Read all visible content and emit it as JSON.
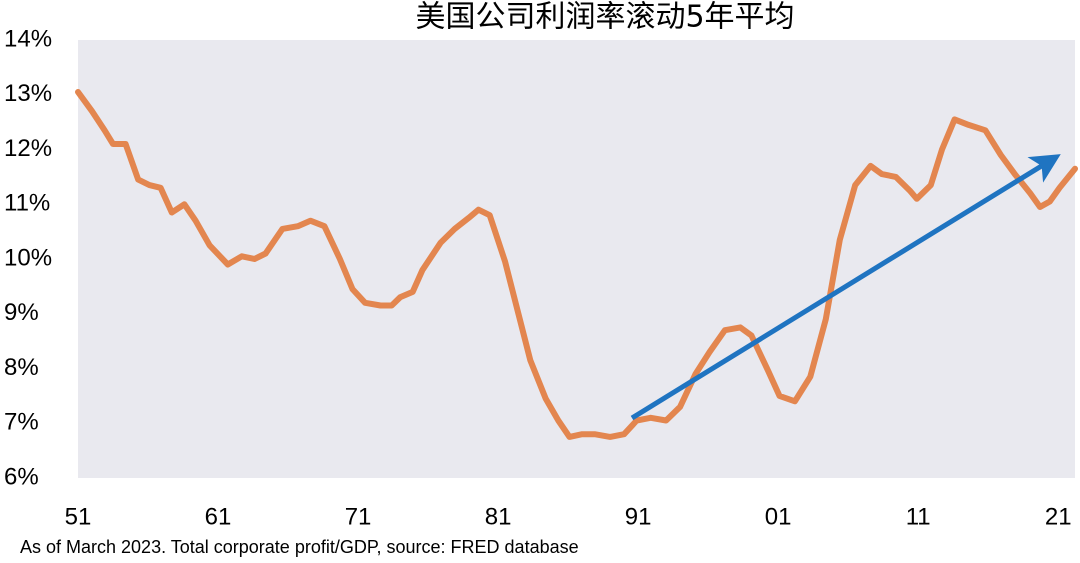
{
  "chart_data": {
    "type": "line",
    "title": "美国公司利润率滚动5年平均",
    "note": "As of March 2023. Total corporate profit/GDP, source: FRED database",
    "x": [
      1951.0,
      1952.0,
      1952.9,
      1953.5,
      1954.4,
      1955.3,
      1956.1,
      1956.9,
      1957.7,
      1958.6,
      1959.4,
      1960.4,
      1961.7,
      1962.7,
      1963.6,
      1964.4,
      1965.6,
      1966.7,
      1967.6,
      1968.6,
      1969.7,
      1970.6,
      1971.5,
      1972.6,
      1973.4,
      1974.0,
      1974.9,
      1975.6,
      1976.9,
      1977.9,
      1978.9,
      1979.6,
      1980.4,
      1981.5,
      1982.4,
      1983.3,
      1984.4,
      1985.3,
      1986.1,
      1987.0,
      1987.9,
      1989.0,
      1990.0,
      1990.9,
      1991.9,
      1993.0,
      1994.0,
      1995.1,
      1996.1,
      1997.2,
      1998.3,
      1999.1,
      2000.3,
      2001.1,
      2002.2,
      2003.3,
      2004.4,
      2005.4,
      2006.5,
      2007.6,
      2008.4,
      2009.4,
      2010.4,
      2010.9,
      2011.9,
      2012.7,
      2013.6,
      2014.6,
      2015.8,
      2016.9,
      2017.9,
      2019.0,
      2019.7,
      2020.4,
      2021.1,
      2022.2
    ],
    "series": [
      {
        "color": "#e3864f",
        "values": [
          13.05,
          12.7,
          12.35,
          12.1,
          12.1,
          11.45,
          11.35,
          11.3,
          10.85,
          11.0,
          10.7,
          10.25,
          9.9,
          10.05,
          10.0,
          10.1,
          10.55,
          10.6,
          10.7,
          10.6,
          10.0,
          9.45,
          9.2,
          9.15,
          9.15,
          9.3,
          9.4,
          9.8,
          10.3,
          10.55,
          10.75,
          10.9,
          10.8,
          9.95,
          9.05,
          8.15,
          7.45,
          7.05,
          6.75,
          6.8,
          6.8,
          6.75,
          6.8,
          7.05,
          7.1,
          7.05,
          7.3,
          7.9,
          8.3,
          8.7,
          8.75,
          8.6,
          7.95,
          7.5,
          7.4,
          7.85,
          8.9,
          10.35,
          11.35,
          11.7,
          11.55,
          11.5,
          11.25,
          11.1,
          11.35,
          12.0,
          12.55,
          12.45,
          12.35,
          11.9,
          11.55,
          11.2,
          10.95,
          11.05,
          11.3,
          11.65
        ]
      }
    ],
    "xlim": [
      1951,
      2022.2
    ],
    "xticks": [
      {
        "value": 1951,
        "label": "51"
      },
      {
        "value": 1961,
        "label": "61"
      },
      {
        "value": 1971,
        "label": "71"
      },
      {
        "value": 1981,
        "label": "81"
      },
      {
        "value": 1991,
        "label": "91"
      },
      {
        "value": 2001,
        "label": "01"
      },
      {
        "value": 2011,
        "label": "11"
      },
      {
        "value": 2021,
        "label": "21"
      }
    ],
    "ylim": [
      6,
      14
    ],
    "yticks": [
      {
        "value": 6,
        "label": "6%"
      },
      {
        "value": 7,
        "label": "7%"
      },
      {
        "value": 8,
        "label": "8%"
      },
      {
        "value": 9,
        "label": "9%"
      },
      {
        "value": 10,
        "label": "10%"
      },
      {
        "value": 11,
        "label": "11%"
      },
      {
        "value": 12,
        "label": "12%"
      },
      {
        "value": 13,
        "label": "13%"
      },
      {
        "value": 14,
        "label": "14%"
      }
    ],
    "plot_background": "#e9e9ef"
  }
}
